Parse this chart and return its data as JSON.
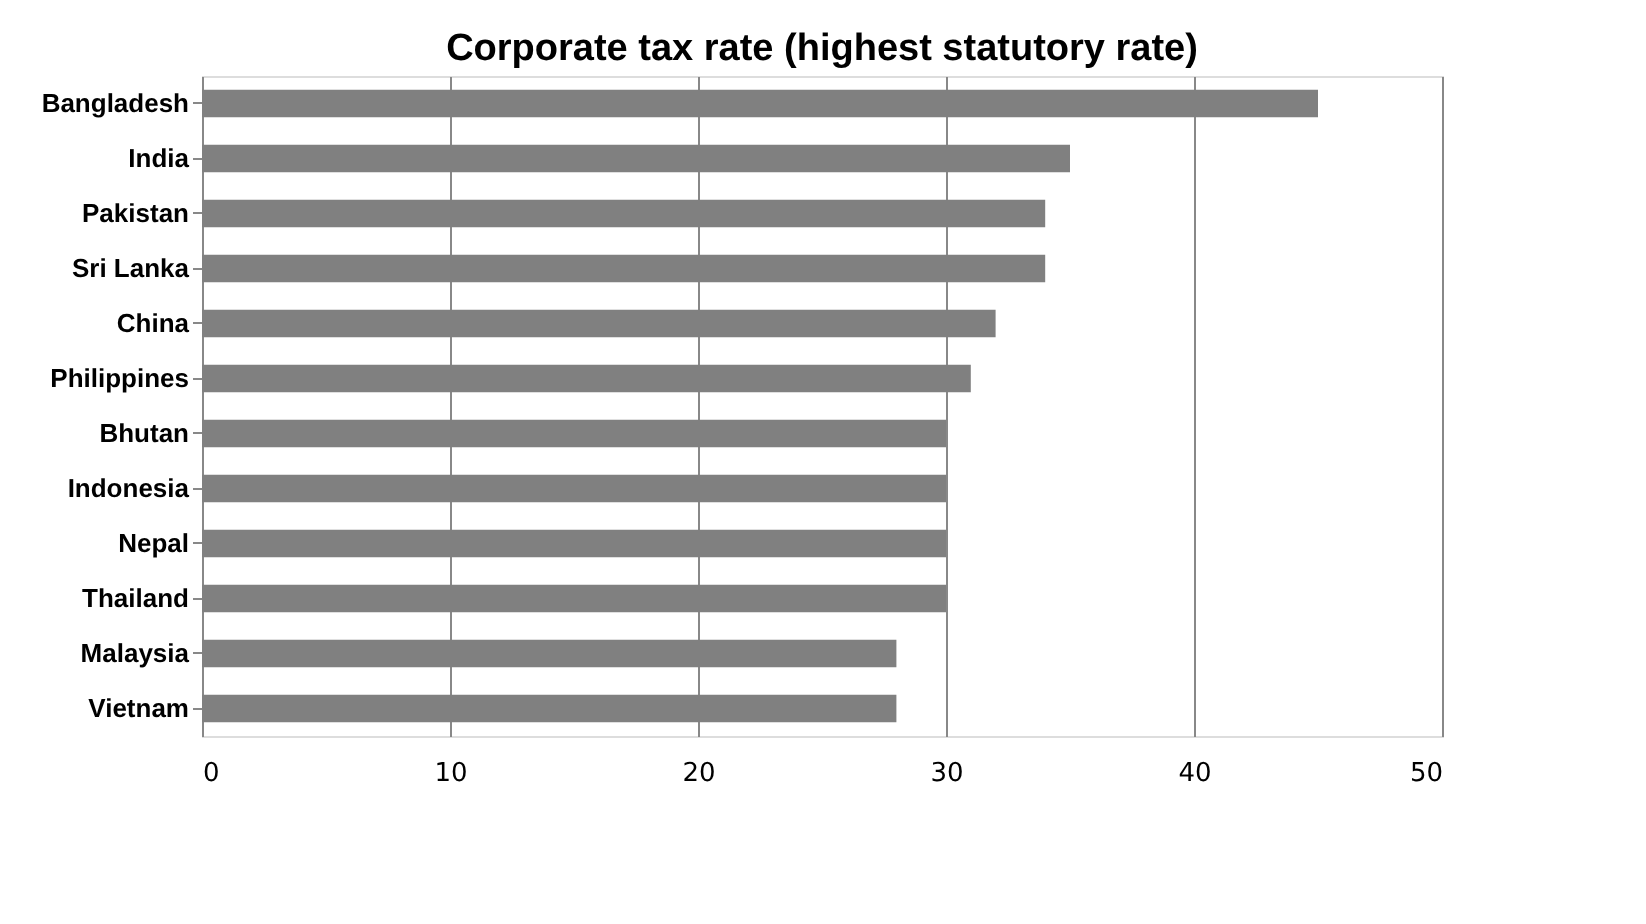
{
  "chart_data": {
    "type": "bar",
    "orientation": "horizontal",
    "title": "Corporate tax rate (highest statutory  rate)",
    "categories": [
      "Bangladesh",
      "India",
      "Pakistan",
      "Sri Lanka",
      "China",
      "Philippines",
      "Bhutan",
      "Indonesia",
      "Nepal",
      "Thailand",
      "Malaysia",
      "Vietnam"
    ],
    "values": [
      45,
      35,
      34,
      34,
      32,
      31,
      30,
      30,
      30,
      30,
      28,
      28
    ],
    "color": "#808080",
    "xlim": [
      0,
      50
    ],
    "xticks": [
      0,
      10,
      20,
      30,
      40,
      50
    ],
    "grid": "x"
  }
}
